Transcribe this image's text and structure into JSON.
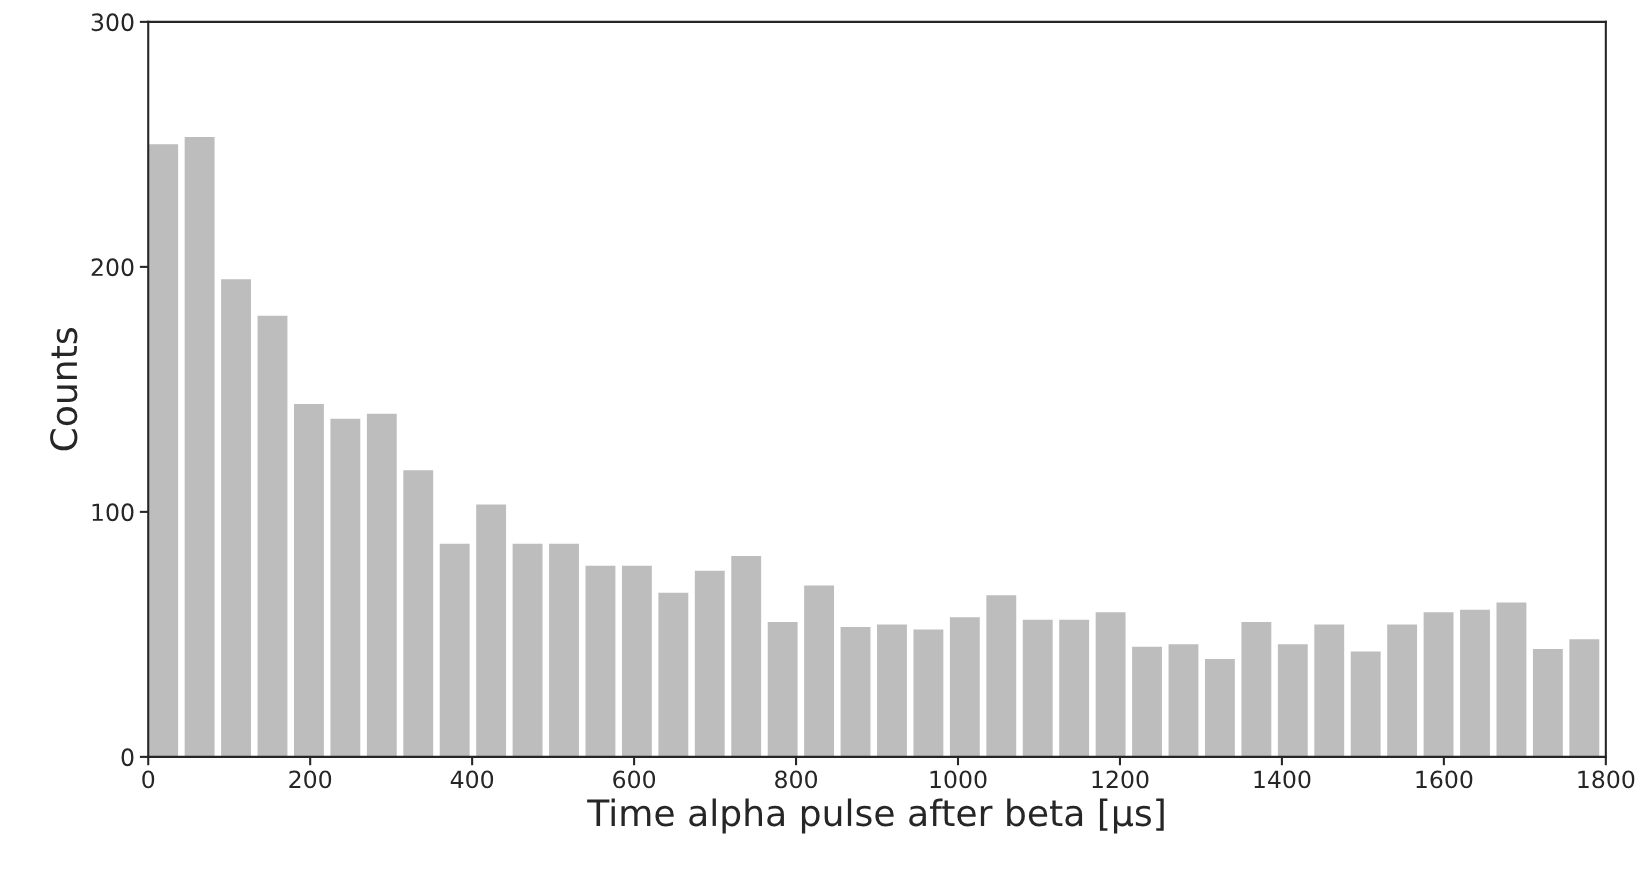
{
  "chart_data": {
    "type": "histogram",
    "xlabel": "Time alpha pulse after beta [µs]",
    "ylabel": "Counts",
    "bins": [
      0,
      45,
      90,
      135,
      180,
      225,
      270,
      315,
      360,
      405,
      450,
      495,
      540,
      585,
      630,
      675,
      720,
      765,
      810,
      855,
      900,
      945,
      990,
      1035,
      1080,
      1125,
      1170,
      1215,
      1260,
      1305,
      1350,
      1395,
      1440,
      1485,
      1530,
      1575,
      1620,
      1665,
      1710,
      1755,
      1800
    ],
    "values": [
      250,
      253,
      195,
      180,
      144,
      138,
      140,
      117,
      87,
      103,
      87,
      87,
      78,
      78,
      67,
      76,
      82,
      55,
      70,
      53,
      54,
      52,
      57,
      66,
      56,
      56,
      59,
      45,
      46,
      40,
      55,
      46,
      54,
      43,
      54,
      59,
      60,
      63,
      44,
      48
    ],
    "color": "#bdbdbd",
    "xlim": [
      0,
      1800
    ],
    "ylim": [
      0,
      300
    ],
    "xticks": [
      0,
      200,
      400,
      600,
      800,
      1000,
      1200,
      1400,
      1600,
      1800
    ],
    "yticks": [
      0,
      100,
      200,
      300
    ],
    "grid": false
  }
}
